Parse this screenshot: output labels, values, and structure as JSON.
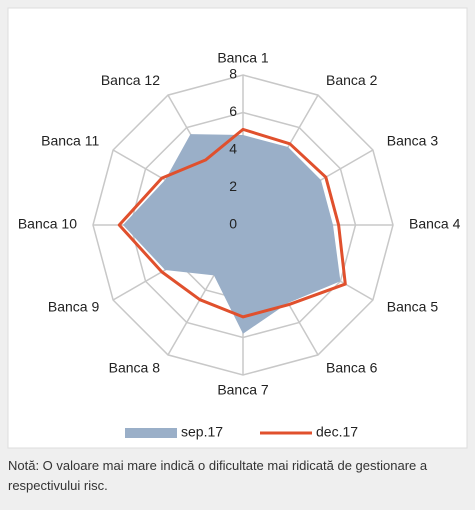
{
  "chart_data": {
    "type": "radar",
    "categories": [
      "Banca 1",
      "Banca 2",
      "Banca 3",
      "Banca 4",
      "Banca 5",
      "Banca 6",
      "Banca 7",
      "Banca 8",
      "Banca 9",
      "Banca 10",
      "Banca 11",
      "Banca 12"
    ],
    "series": [
      {
        "name": "sep.17",
        "color": "#9aafc8",
        "fill": true,
        "values": [
          4.8,
          4.8,
          4.8,
          4.8,
          6.0,
          4.8,
          5.8,
          3.1,
          4.8,
          6.4,
          4.8,
          5.6
        ]
      },
      {
        "name": "dec.17",
        "color": "#e0502d",
        "fill": false,
        "values": [
          5.1,
          5.0,
          5.1,
          5.1,
          6.3,
          4.9,
          4.9,
          4.6,
          5.0,
          6.6,
          5.0,
          4.0
        ]
      }
    ],
    "ylim": [
      0,
      8
    ],
    "yticks": [
      0,
      2,
      4,
      6,
      8
    ],
    "grid": true,
    "legend": "bottom"
  },
  "note": "Notă: O valoare mai mare indică o dificultate mai ridicată de gestionare a respectivului risc."
}
